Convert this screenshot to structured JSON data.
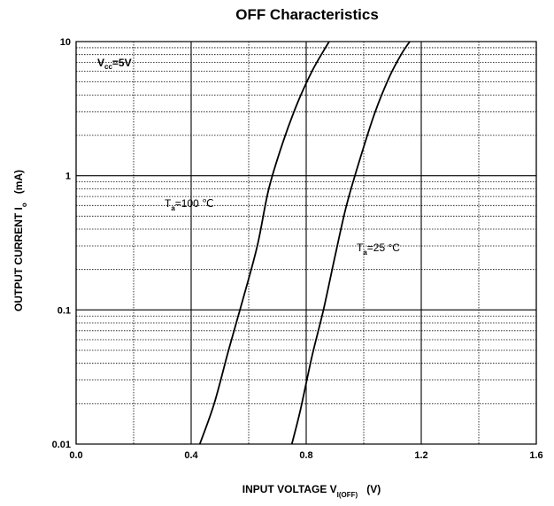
{
  "chart_data": {
    "type": "line",
    "title": "OFF Characteristics",
    "xlabel": {
      "main": "INPUT VOLTAGE   V",
      "sub": "I(OFF)",
      "unit": "(V)"
    },
    "ylabel": {
      "main": "OUTPUT CURRENT   I",
      "sub": "o",
      "unit": "(mA)"
    },
    "xlim": [
      0.0,
      1.6
    ],
    "ylim": [
      0.01,
      10
    ],
    "yscale": "log",
    "x_ticks": [
      0.0,
      0.4,
      0.8,
      1.2,
      1.6
    ],
    "x_tick_labels": [
      "0.0",
      "0.4",
      "0.8",
      "1.2",
      "1.6"
    ],
    "y_ticks": [
      0.01,
      0.1,
      1,
      10
    ],
    "y_tick_labels": [
      "0.01",
      "0.1",
      "1",
      "10"
    ],
    "grid": true,
    "condition": {
      "main": "V",
      "sub": "cc",
      "rest": "=5V"
    },
    "series": [
      {
        "name": "",
        "label": {
          "main": "T",
          "sub": "a",
          "rest": "=100 ℃"
        },
        "x": [
          0.43,
          0.48,
          0.53,
          0.58,
          0.63,
          0.67,
          0.72,
          0.77,
          0.82,
          0.86,
          0.88
        ],
        "y": [
          0.01,
          0.02,
          0.05,
          0.12,
          0.3,
          0.8,
          1.8,
          3.5,
          6.0,
          8.5,
          10.0
        ]
      },
      {
        "name": "",
        "label": {
          "main": "T",
          "sub": "a",
          "rest": "=25 °C"
        },
        "x": [
          0.75,
          0.78,
          0.82,
          0.86,
          0.9,
          0.94,
          0.99,
          1.04,
          1.09,
          1.13,
          1.16
        ],
        "y": [
          0.01,
          0.018,
          0.045,
          0.1,
          0.25,
          0.6,
          1.4,
          3.0,
          5.5,
          8.0,
          10.0
        ]
      }
    ]
  }
}
